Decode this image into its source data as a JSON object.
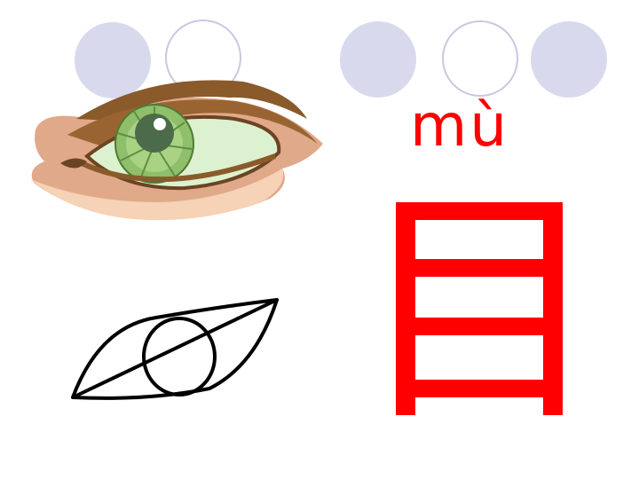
{
  "lesson": {
    "pinyin": "mù",
    "character": "目"
  },
  "icons": {
    "picture": "green-eye-illustration",
    "sketch": "eye-line-drawing"
  },
  "colors": {
    "text": "#ff0000",
    "circle_fill": "#d9d9ee",
    "circle_outline": "#c8c8e0",
    "iris": "#8fbf6a",
    "skin": "#e0a98a",
    "brow": "#8a5a2b"
  }
}
